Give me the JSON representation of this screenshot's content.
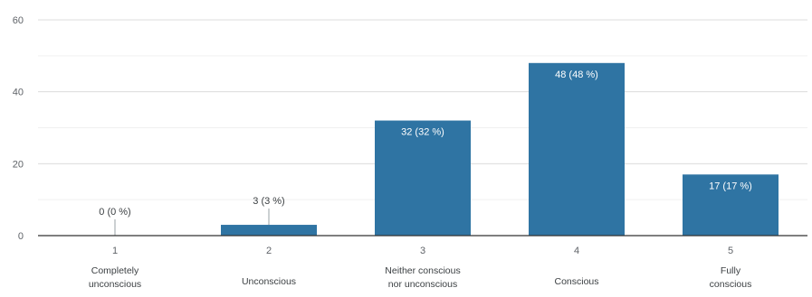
{
  "chart_data": {
    "type": "bar",
    "x": [
      "1",
      "2",
      "3",
      "4",
      "5"
    ],
    "categories": [
      "Completely unconscious",
      "Unconscious",
      "Neither conscious nor unconscious",
      "Conscious",
      "Fully conscious"
    ],
    "values": [
      0,
      3,
      32,
      48,
      17
    ],
    "data_labels": [
      "0 (0 %)",
      "3 (3 %)",
      "32 (32 %)",
      "48 (48 %)",
      "17 (17 %)"
    ],
    "y_ticks": [
      "0",
      "20",
      "40",
      "60"
    ],
    "ylim": [
      0,
      60
    ],
    "grid": true,
    "bar_color": "#2f74a3",
    "title": "",
    "xlabel": "",
    "ylabel": ""
  }
}
